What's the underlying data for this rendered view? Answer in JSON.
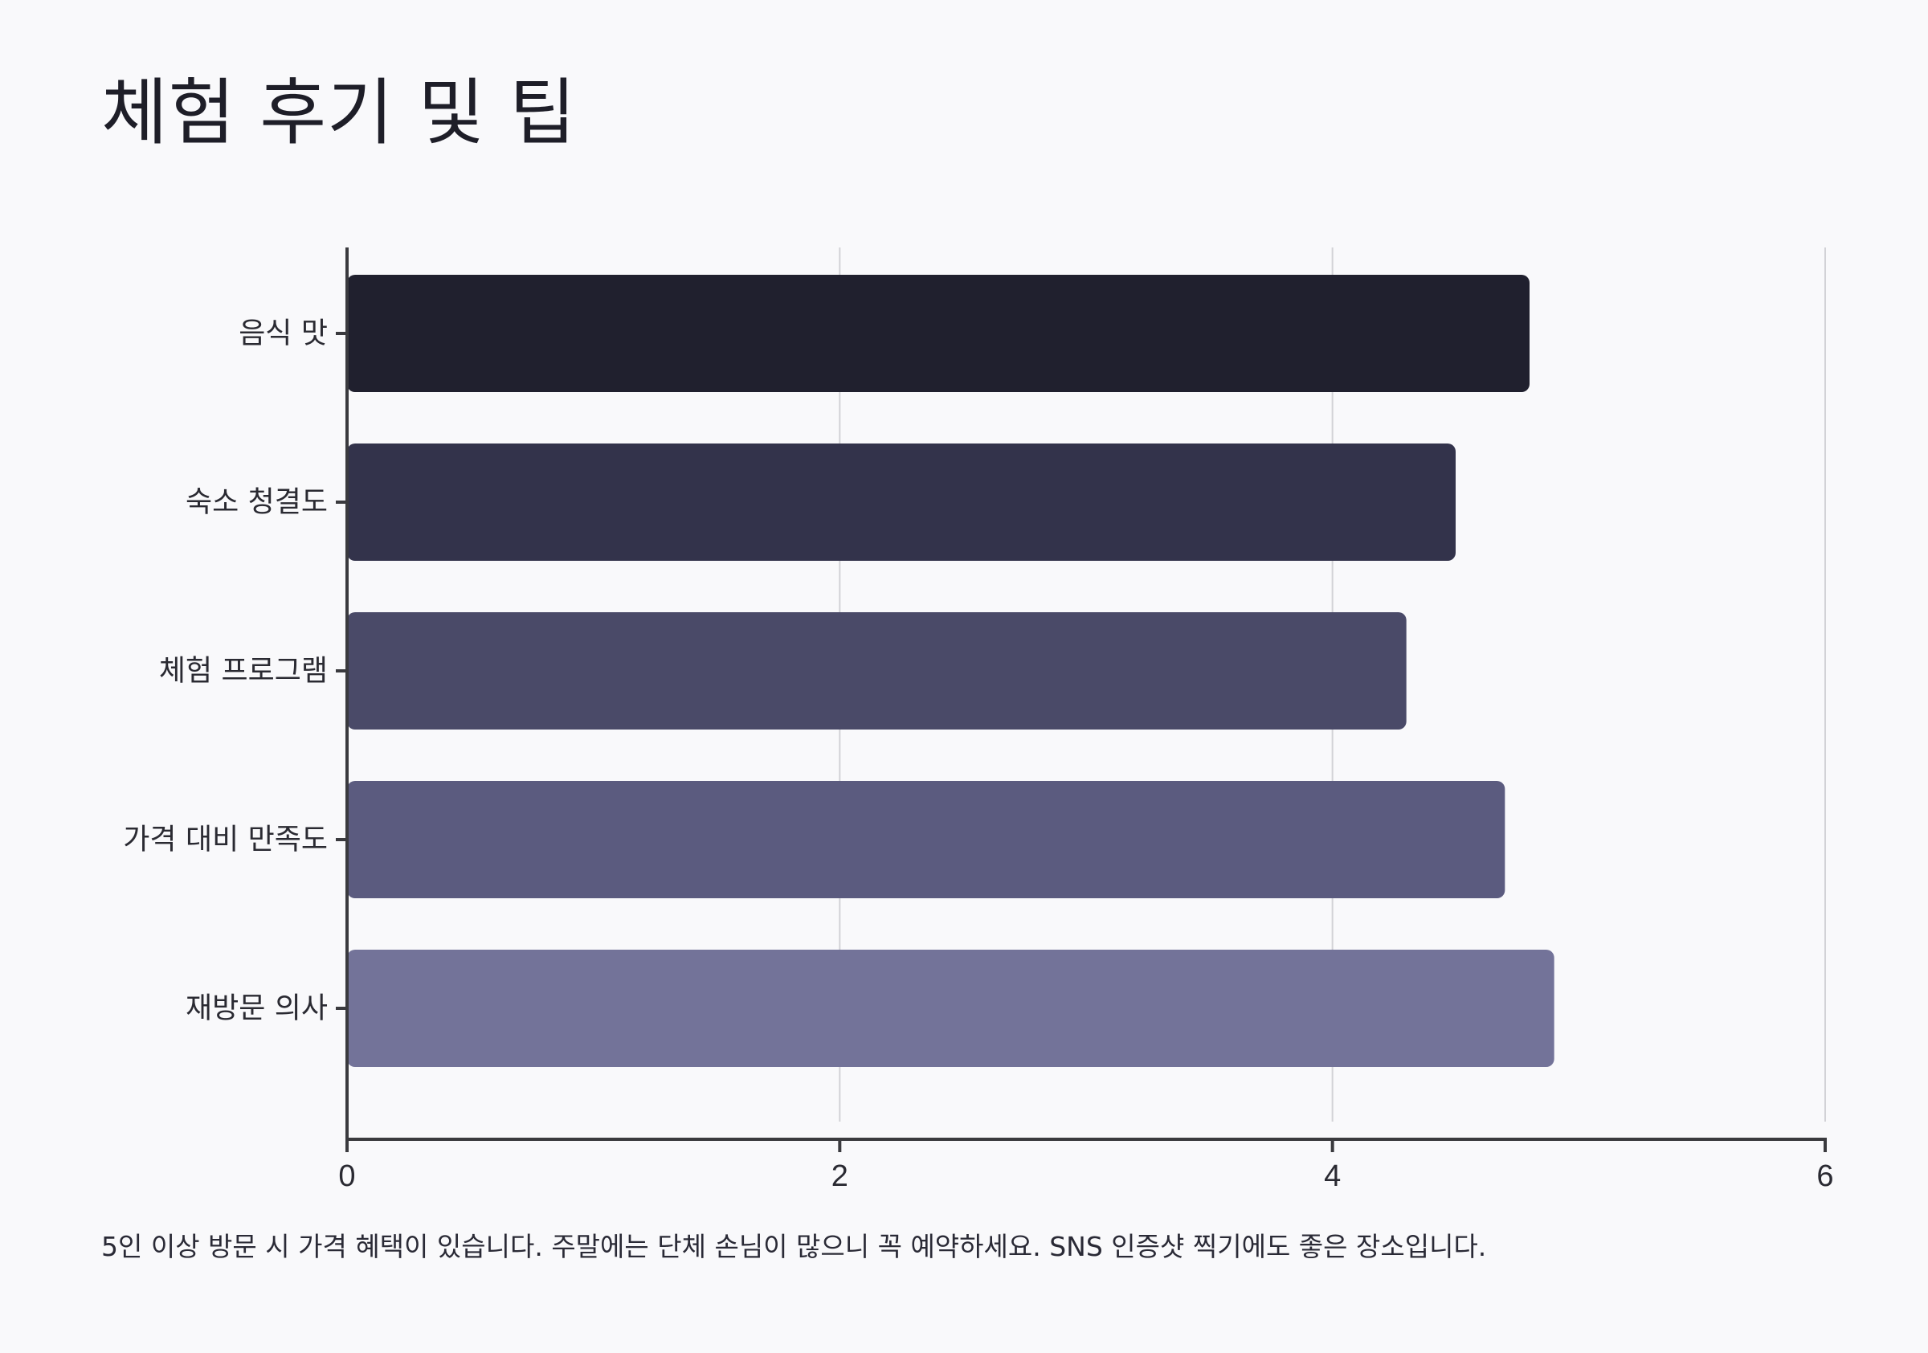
{
  "page": {
    "title": "체험 후기 및 팁",
    "footnote": "5인 이상 방문 시 가격 혜택이 있습니다. 주말에는 단체 손님이 많으니 꼭 예약하세요. SNS 인증샷 찍기에도 좋은 장소입니다."
  },
  "chart_data": {
    "type": "bar",
    "orientation": "horizontal",
    "title": "체험 후기 및 팁",
    "xlabel": "",
    "ylabel": "",
    "categories": [
      "음식 맛",
      "숙소 청결도",
      "체험 프로그램",
      "가격 대비 만족도",
      "재방문 의사"
    ],
    "values": [
      4.8,
      4.5,
      4.3,
      4.7,
      4.9
    ],
    "xlim": [
      0,
      6
    ],
    "x_ticks": [
      "0",
      "2",
      "4",
      "6"
    ],
    "grid": "vertical",
    "colors": [
      "#20202e",
      "#33334b",
      "#4a4a68",
      "#5b5b7f",
      "#737399"
    ]
  }
}
